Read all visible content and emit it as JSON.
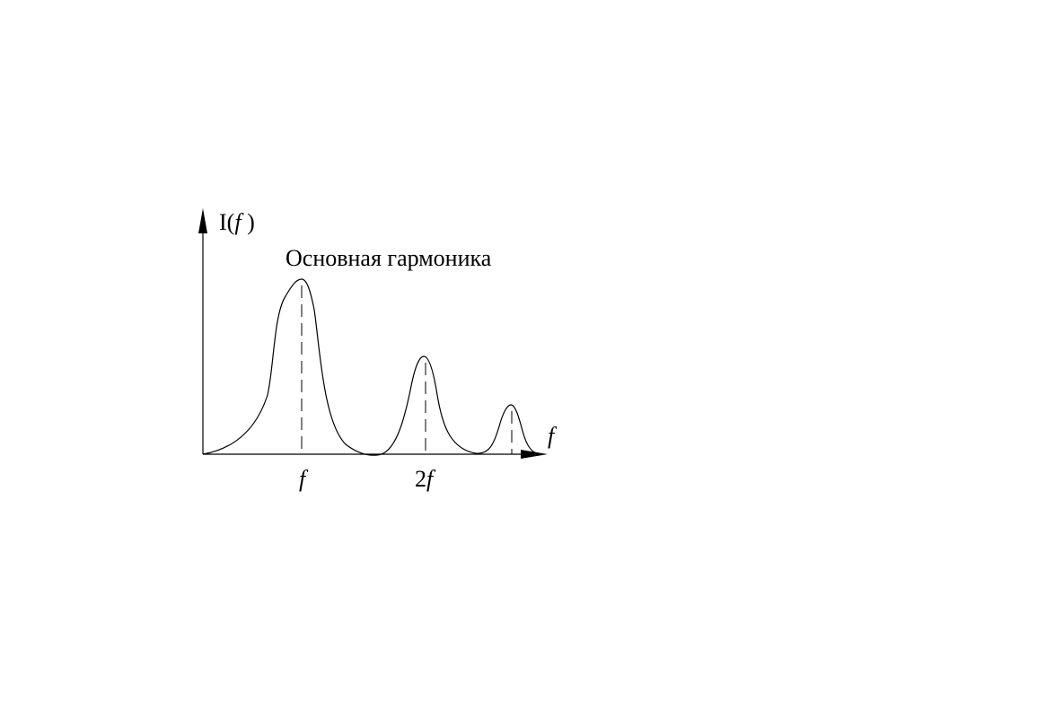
{
  "y_axis": {
    "label": [
      "I(",
      "f",
      " )"
    ]
  },
  "annotation": "Основная гармоника",
  "x_axis": {
    "label": "f",
    "ticks": [
      {
        "label": "f"
      },
      {
        "label": [
          "2",
          "f"
        ]
      }
    ]
  }
}
